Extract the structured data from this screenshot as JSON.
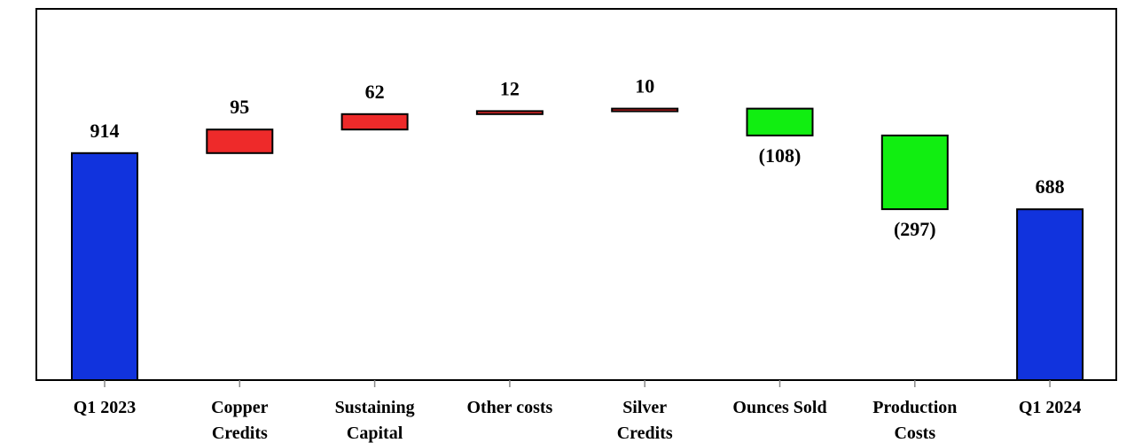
{
  "chart_data": {
    "type": "bar",
    "title": "",
    "xlabel": "",
    "ylabel": "",
    "categories": [
      [
        "Q1 2023"
      ],
      [
        "Copper",
        "Credits"
      ],
      [
        "Sustaining",
        "Capital"
      ],
      [
        "Other costs"
      ],
      [
        "Silver",
        "Credits"
      ],
      [
        "Ounces Sold"
      ],
      [
        "Production",
        "Costs"
      ],
      [
        "Q1 2024"
      ]
    ],
    "bars": [
      {
        "kind": "total",
        "start": 0,
        "end": 914,
        "label": "914",
        "color": "#1133dd"
      },
      {
        "kind": "increase",
        "start": 914,
        "end": 1009,
        "label": "95",
        "color": "#ee2a2a"
      },
      {
        "kind": "increase",
        "start": 1009,
        "end": 1071,
        "label": "62",
        "color": "#ee2a2a"
      },
      {
        "kind": "increase",
        "start": 1071,
        "end": 1083,
        "label": "12",
        "color": "#ee2a2a"
      },
      {
        "kind": "increase",
        "start": 1083,
        "end": 1093,
        "label": "10",
        "color": "#ee2a2a"
      },
      {
        "kind": "decrease",
        "start": 1093,
        "end": 985,
        "label": "(108)",
        "color": "#11ee11"
      },
      {
        "kind": "decrease",
        "start": 985,
        "end": 688,
        "label": "(297)",
        "color": "#11ee11"
      },
      {
        "kind": "total",
        "start": 0,
        "end": 688,
        "label": "688",
        "color": "#1133dd"
      }
    ],
    "ylim": [
      0,
      1400
    ],
    "grid": false,
    "legend": "none"
  }
}
